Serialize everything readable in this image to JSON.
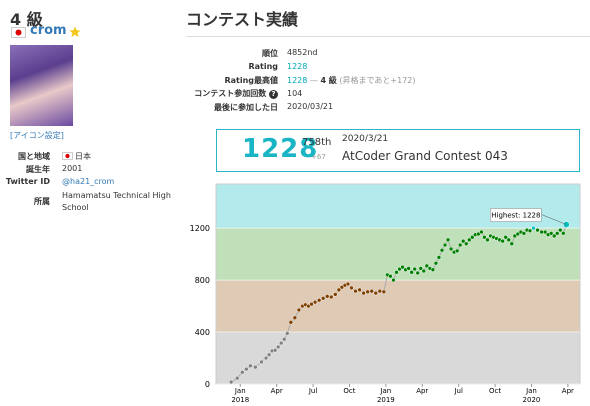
{
  "profile": {
    "grade": "4 級",
    "username": "crom",
    "avatar_link": "[アイコン設定]",
    "rows": [
      {
        "label": "国と地域",
        "value": "日本"
      },
      {
        "label": "誕生年",
        "value": "2001"
      },
      {
        "label": "Twitter ID",
        "value": "@ha21_crom"
      },
      {
        "label": "所属",
        "value": "Hamamatsu Technical High School"
      }
    ]
  },
  "contest": {
    "title": "コンテスト実績",
    "rows": [
      {
        "label": "順位",
        "value": "4852nd"
      },
      {
        "label": "Rating",
        "value": "1228"
      },
      {
        "label": "Rating最高値",
        "value": "1228",
        "separator": "—",
        "grade": "4 級",
        "note": "(昇格まであと+172)"
      },
      {
        "label": "コンテスト参加回数",
        "help_icon": "?",
        "value": "104"
      },
      {
        "label": "最後に参加した日",
        "value": "2020/03/21"
      }
    ]
  },
  "last_contest": {
    "rating": "1228",
    "place": "758th",
    "diff": "+67",
    "date": "2020/3/21",
    "name": "AtCoder Grand Contest 043"
  },
  "chart_data": {
    "type": "line",
    "x": [
      "2017-12",
      "2017-12",
      "2018-01",
      "2018-01",
      "2018-01",
      "2018-02",
      "2018-02",
      "2018-03",
      "2018-03",
      "2018-03",
      "2018-03",
      "2018-04",
      "2018-04",
      "2018-04",
      "2018-04",
      "2018-05",
      "2018-05",
      "2018-05",
      "2018-06",
      "2018-06",
      "2018-06",
      "2018-06",
      "2018-07",
      "2018-07",
      "2018-07",
      "2018-08",
      "2018-08",
      "2018-08",
      "2018-09",
      "2018-09",
      "2018-09",
      "2018-09",
      "2018-10",
      "2018-10",
      "2018-10",
      "2018-11",
      "2018-11",
      "2018-11",
      "2018-12",
      "2018-12",
      "2018-12",
      "2019-01",
      "2019-01",
      "2019-01",
      "2019-01",
      "2019-02",
      "2019-02",
      "2019-02",
      "2019-02",
      "2019-03",
      "2019-03",
      "2019-03",
      "2019-03",
      "2019-04",
      "2019-04",
      "2019-04",
      "2019-04",
      "2019-05",
      "2019-05",
      "2019-05",
      "2019-05",
      "2019-06",
      "2019-06",
      "2019-06",
      "2019-06",
      "2019-07",
      "2019-07",
      "2019-07",
      "2019-07",
      "2019-08",
      "2019-08",
      "2019-08",
      "2019-08",
      "2019-09",
      "2019-09",
      "2019-09",
      "2019-09",
      "2019-10",
      "2019-10",
      "2019-10",
      "2019-10",
      "2019-11",
      "2019-11",
      "2019-11",
      "2019-11",
      "2019-12",
      "2019-12",
      "2019-12",
      "2019-12",
      "2020-01",
      "2020-01",
      "2020-01",
      "2020-02",
      "2020-02",
      "2020-02",
      "2020-02",
      "2020-03",
      "2020-03",
      "2020-03",
      "2020-03"
    ],
    "values": [
      15,
      45,
      90,
      115,
      140,
      130,
      170,
      200,
      225,
      255,
      260,
      285,
      315,
      345,
      390,
      475,
      510,
      570,
      600,
      610,
      600,
      615,
      630,
      645,
      660,
      675,
      670,
      690,
      725,
      745,
      760,
      770,
      740,
      715,
      725,
      700,
      710,
      715,
      700,
      715,
      710,
      840,
      830,
      800,
      860,
      885,
      900,
      880,
      890,
      860,
      885,
      855,
      890,
      870,
      910,
      890,
      880,
      930,
      975,
      1030,
      1070,
      1110,
      1040,
      1015,
      1025,
      1070,
      1100,
      1080,
      1110,
      1130,
      1150,
      1155,
      1170,
      1130,
      1110,
      1140,
      1130,
      1120,
      1110,
      1100,
      1130,
      1110,
      1080,
      1140,
      1155,
      1170,
      1160,
      1185,
      1180,
      1200,
      1185,
      1170,
      1170,
      1150,
      1160,
      1140,
      1160,
      1185,
      1161,
      1228
    ],
    "xlim": [
      "2017-11",
      "2020-05"
    ],
    "xticks": [
      {
        "value": "2018-01",
        "label": "Jan",
        "year": "2018"
      },
      {
        "value": "2018-04",
        "label": "Apr"
      },
      {
        "value": "2018-07",
        "label": "Jul"
      },
      {
        "value": "2018-10",
        "label": "Oct"
      },
      {
        "value": "2019-01",
        "label": "Jan",
        "year": "2019"
      },
      {
        "value": "2019-04",
        "label": "Apr"
      },
      {
        "value": "2019-07",
        "label": "Jul"
      },
      {
        "value": "2019-10",
        "label": "Oct"
      },
      {
        "value": "2020-01",
        "label": "Jan",
        "year": "2020"
      },
      {
        "value": "2020-04",
        "label": "Apr"
      }
    ],
    "ylim": [
      0,
      1540
    ],
    "yticks": [
      0,
      400,
      800,
      1200
    ],
    "bands": [
      {
        "from": 0,
        "to": 400,
        "color": "#d9d9d9",
        "dot": "#808080"
      },
      {
        "from": 400,
        "to": 800,
        "color": "#dfcab6",
        "dot": "#804000"
      },
      {
        "from": 800,
        "to": 1200,
        "color": "#bfe0b8",
        "dot": "#008000"
      },
      {
        "from": 1200,
        "to": 1600,
        "color": "#b3eaec",
        "dot": "#00c0c0"
      }
    ],
    "highlight_label": "Highest: 1228"
  }
}
